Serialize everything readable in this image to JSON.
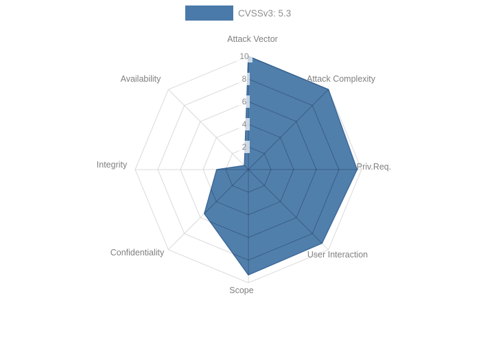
{
  "legend": {
    "label": "CVSSv3: 5.3"
  },
  "chart_data": {
    "type": "radar",
    "title": "",
    "categories": [
      "Attack Vector",
      "Attack Complexity",
      "Priv.Req.",
      "User Interaction",
      "Scope",
      "Confidentiality",
      "Integrity",
      "Availability"
    ],
    "series": [
      {
        "name": "CVSSv3: 5.3",
        "values": [
          10,
          10,
          9.6,
          9.2,
          9.3,
          5.5,
          2.8,
          0.5
        ]
      }
    ],
    "radial_ticks": [
      2,
      4,
      6,
      8,
      10
    ],
    "range": [
      0,
      10
    ],
    "grid": true,
    "legend_position": "top",
    "colors": {
      "fill": "#4a7aa9",
      "stroke": "#3d6a99",
      "grid": "#d9d9d9",
      "axis_label": "#7f7f7f",
      "tick_label": "#8b8b8b"
    }
  }
}
